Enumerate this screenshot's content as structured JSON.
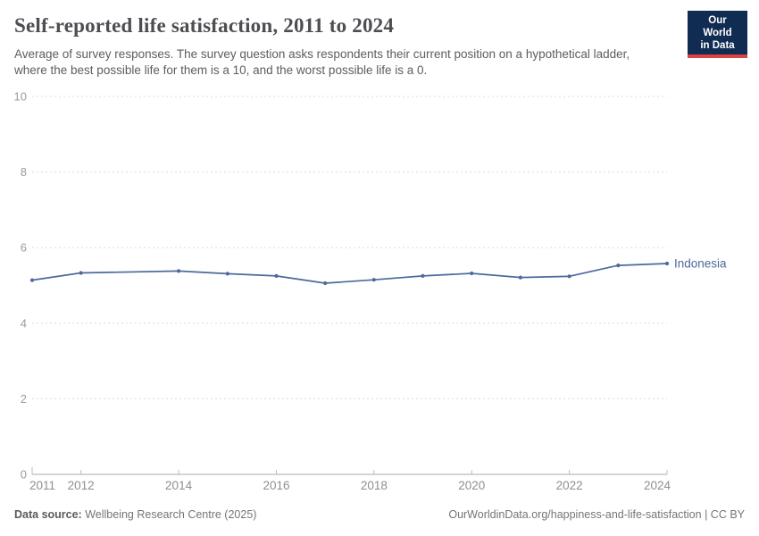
{
  "header": {
    "title": "Self-reported life satisfaction, 2011 to 2024",
    "subtitle": "Average of survey responses. The survey question asks respondents their current position on a hypothetical ladder, where the best possible life for them is a 10, and the worst possible life is a 0.",
    "logo": {
      "line1": "Our World",
      "line2": "in Data"
    }
  },
  "chart_data": {
    "type": "line",
    "title": "Self-reported life satisfaction, 2011 to 2024",
    "xlabel": "",
    "ylabel": "",
    "xlim": [
      2011,
      2024
    ],
    "ylim": [
      0,
      10
    ],
    "xticks": [
      2011,
      2012,
      2014,
      2016,
      2018,
      2020,
      2022,
      2024
    ],
    "yticks": [
      0,
      2,
      4,
      6,
      8,
      10
    ],
    "grid": "horizontal-dashed",
    "legend_position": "end-of-line-label",
    "series": [
      {
        "name": "Indonesia",
        "color": "#4c6a9c",
        "points": [
          [
            2011,
            5.14
          ],
          [
            2012,
            5.33
          ],
          [
            2014,
            5.38
          ],
          [
            2015,
            5.31
          ],
          [
            2016,
            5.25
          ],
          [
            2017,
            5.06
          ],
          [
            2018,
            5.15
          ],
          [
            2019,
            5.25
          ],
          [
            2020,
            5.32
          ],
          [
            2021,
            5.21
          ],
          [
            2022,
            5.24
          ],
          [
            2023,
            5.53
          ],
          [
            2024,
            5.58
          ]
        ]
      }
    ]
  },
  "footer": {
    "datasource_label": "Data source:",
    "datasource": " Wellbeing Research Centre (2025)",
    "link": "OurWorldinData.org/happiness-and-life-satisfaction",
    "separator": " | ",
    "license": "CC BY"
  },
  "colors": {
    "accent_line": "#4c6a9c",
    "logo_bg": "#102c52",
    "logo_stripe": "#dc4444",
    "gridline": "#dcdcdc",
    "axis": "#a8a8a8",
    "tick_label": "#8f8f8f"
  }
}
